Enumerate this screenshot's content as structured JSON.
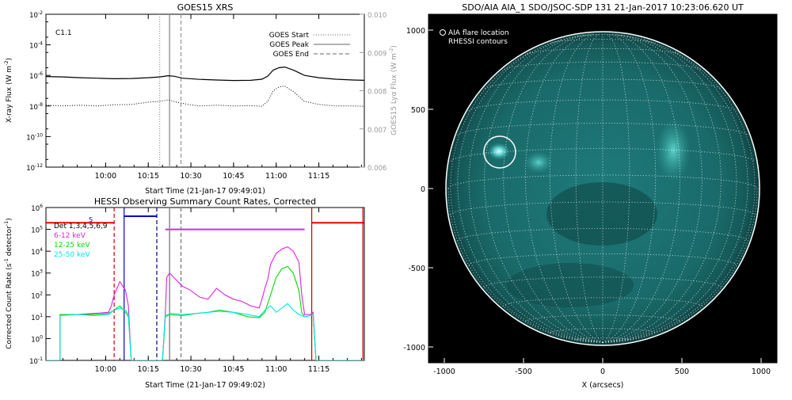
{
  "chart_data": [
    {
      "id": "goes",
      "type": "line",
      "title": "GOES15 XRS",
      "xlabel": "Start Time (21-Jan-17 09:49:01)",
      "ylabel": "X-ray Flux (W m",
      "ylabel_sup": "-2",
      "ylabel_end": ")",
      "ylabel_right": "GOES15 Lyα Flux (W m",
      "ylabel_right_sup": "-2",
      "ylabel_right_end": ")",
      "annotation": "C1.1",
      "x_range_min": [
        579,
        1056
      ],
      "x_ticks": [
        {
          "min": 600,
          "label": "10:00"
        },
        {
          "min": 615,
          "label": "10:15"
        },
        {
          "min": 630,
          "label": "10:30"
        },
        {
          "min": 645,
          "label": "10:45"
        },
        {
          "min": 660,
          "label": "11:00"
        },
        {
          "min": 675,
          "label": "11:15"
        }
      ],
      "x_ticks_visible_range": [
        579,
        691
      ],
      "ylog_range": [
        -12,
        -2
      ],
      "y_ticks": [
        {
          "exp": -2,
          "label": "10",
          "sup": "-2"
        },
        {
          "exp": -4,
          "label": "10",
          "sup": "-4"
        },
        {
          "exp": -6,
          "label": "10",
          "sup": "-6"
        },
        {
          "exp": -8,
          "label": "10",
          "sup": "-8"
        },
        {
          "exp": -10,
          "label": "10",
          "sup": "-10"
        },
        {
          "exp": -12,
          "label": "10",
          "sup": "-12"
        }
      ],
      "y2_range": [
        0.006,
        0.01
      ],
      "y2_ticks": [
        "0.010",
        "0.009",
        "0.008",
        "0.007",
        "0.006"
      ],
      "legend": [
        {
          "label": "GOES Start",
          "style": "dotted"
        },
        {
          "label": "GOES Peak",
          "style": "solid"
        },
        {
          "label": "GOES End",
          "style": "dashed"
        }
      ],
      "markers_min": {
        "start": 619,
        "peak": 622.5,
        "end": 626.5
      },
      "series": [
        {
          "style": "solid",
          "color": "#000000",
          "points": [
            [
              579,
              -6.07
            ],
            [
              585,
              -6.1
            ],
            [
              591,
              -6.15
            ],
            [
              597,
              -6.18
            ],
            [
              603,
              -6.22
            ],
            [
              609,
              -6.2
            ],
            [
              615,
              -6.15
            ],
            [
              619,
              -6.1
            ],
            [
              622,
              -6.02
            ],
            [
              624,
              -6.05
            ],
            [
              627,
              -6.18
            ],
            [
              633,
              -6.26
            ],
            [
              639,
              -6.3
            ],
            [
              645,
              -6.33
            ],
            [
              651,
              -6.32
            ],
            [
              655,
              -6.25
            ],
            [
              657,
              -6.05
            ],
            [
              659,
              -5.65
            ],
            [
              661,
              -5.5
            ],
            [
              663,
              -5.45
            ],
            [
              666,
              -5.65
            ],
            [
              670,
              -6.0
            ],
            [
              675,
              -6.15
            ],
            [
              681,
              -6.25
            ],
            [
              687,
              -6.3
            ],
            [
              691,
              -6.32
            ]
          ]
        },
        {
          "style": "dotted",
          "color": "#000000",
          "points": [
            [
              579,
              -7.95
            ],
            [
              585,
              -8.0
            ],
            [
              591,
              -7.95
            ],
            [
              597,
              -8.0
            ],
            [
              603,
              -7.92
            ],
            [
              609,
              -7.9
            ],
            [
              615,
              -7.75
            ],
            [
              619,
              -7.7
            ],
            [
              622,
              -7.6
            ],
            [
              625,
              -7.75
            ],
            [
              629,
              -7.9
            ],
            [
              633,
              -8.0
            ],
            [
              639,
              -7.95
            ],
            [
              645,
              -8.0
            ],
            [
              651,
              -7.98
            ],
            [
              655,
              -8.02
            ],
            [
              657,
              -7.7
            ],
            [
              659,
              -7.0
            ],
            [
              661,
              -6.75
            ],
            [
              663,
              -6.7
            ],
            [
              666,
              -7.05
            ],
            [
              670,
              -7.7
            ],
            [
              675,
              -7.9
            ],
            [
              681,
              -8.0
            ],
            [
              687,
              -8.0
            ],
            [
              691,
              -8.02
            ]
          ]
        }
      ]
    },
    {
      "id": "hessi",
      "type": "line",
      "title": "HESSI Observing Summary Count Rates, Corrected",
      "xlabel": "Start Time (21-Jan-17 09:49:02)",
      "ylabel": "Corrected Count Rate (s",
      "ylabel_sup": "-1",
      "ylabel_end": " detector",
      "ylabel_sup2": "-1",
      "ylabel_end2": ")",
      "x_ticks": [
        {
          "min": 600,
          "label": "10:00"
        },
        {
          "min": 615,
          "label": "10:15"
        },
        {
          "min": 630,
          "label": "10:30"
        },
        {
          "min": 645,
          "label": "10:45"
        },
        {
          "min": 660,
          "label": "11:00"
        },
        {
          "min": 675,
          "label": "11:15"
        }
      ],
      "ylog_range": [
        -1,
        6
      ],
      "y_ticks": [
        {
          "exp": 6,
          "label": "10",
          "sup": "6"
        },
        {
          "exp": 5,
          "label": "10",
          "sup": "5"
        },
        {
          "exp": 4,
          "label": "10",
          "sup": "4"
        },
        {
          "exp": 3,
          "label": "10",
          "sup": "3"
        },
        {
          "exp": 2,
          "label": "10",
          "sup": "2"
        },
        {
          "exp": 1,
          "label": "10",
          "sup": "1"
        },
        {
          "exp": 0,
          "label": "10",
          "sup": "0"
        },
        {
          "exp": -1,
          "label": "10",
          "sup": "-1"
        }
      ],
      "legend": [
        {
          "label": "Det 1,3,4,5,6,9",
          "color": "#000000"
        },
        {
          "label": "6-12 keV",
          "color": "#e020e0"
        },
        {
          "label": "12-25 keV",
          "color": "#00dd00"
        },
        {
          "label": "25-50 keV",
          "color": "#00e5e5"
        }
      ],
      "s_label": "S",
      "vlines": [
        {
          "min": 603,
          "color": "#cc0000",
          "style": "dashed"
        },
        {
          "min": 606.5,
          "color": "#0000cc",
          "style": "solid"
        },
        {
          "min": 618,
          "color": "#000080",
          "style": "dashed"
        },
        {
          "min": 622.5,
          "color": "#888888",
          "style": "solid"
        },
        {
          "min": 626.5,
          "color": "#888888",
          "style": "dashed"
        },
        {
          "min": 672.5,
          "color": "#cc0000",
          "style": "solid"
        },
        {
          "min": 690.5,
          "color": "#cc0000",
          "style": "solid"
        }
      ],
      "attenuator_bars": [
        {
          "from": 579,
          "to": 603,
          "exp": 5.3,
          "color": "#ee0000"
        },
        {
          "from": 606.5,
          "to": 618,
          "exp": 5.6,
          "color": "#0000cc"
        },
        {
          "from": 621,
          "to": 670,
          "exp": 5.0,
          "color": "#e020e0"
        },
        {
          "from": 672.5,
          "to": 691,
          "exp": 5.3,
          "color": "#ee0000"
        }
      ],
      "series": [
        {
          "name": "6-12 keV",
          "color": "#e020e0",
          "points": [
            [
              579,
              -1
            ],
            [
              584,
              -1
            ],
            [
              584,
              1.1
            ],
            [
              590,
              1.1
            ],
            [
              596,
              1.15
            ],
            [
              601,
              1.2
            ],
            [
              602,
              1.5
            ],
            [
              603,
              2.0
            ],
            [
              604,
              2.3
            ],
            [
              605,
              2.6
            ],
            [
              606,
              2.4
            ],
            [
              607,
              2.2
            ],
            [
              608,
              1.5
            ],
            [
              609,
              -1
            ],
            [
              620,
              -1
            ],
            [
              621,
              1.2
            ],
            [
              621.5,
              2.8
            ],
            [
              622.5,
              3.0
            ],
            [
              624,
              2.8
            ],
            [
              627,
              2.4
            ],
            [
              630,
              2.2
            ],
            [
              633,
              1.9
            ],
            [
              636,
              1.8
            ],
            [
              639,
              2.3
            ],
            [
              642,
              2.0
            ],
            [
              645,
              1.8
            ],
            [
              648,
              1.7
            ],
            [
              651,
              1.5
            ],
            [
              654,
              1.4
            ],
            [
              655,
              1.8
            ],
            [
              656,
              2.3
            ],
            [
              657,
              2.7
            ],
            [
              658,
              3.4
            ],
            [
              660,
              3.9
            ],
            [
              662,
              4.1
            ],
            [
              664,
              4.2
            ],
            [
              666,
              4.0
            ],
            [
              668,
              3.5
            ],
            [
              669,
              2.0
            ],
            [
              670,
              1.1
            ],
            [
              672,
              1.1
            ],
            [
              673,
              1.2
            ],
            [
              674,
              -1
            ],
            [
              691,
              -1
            ]
          ]
        },
        {
          "name": "12-25 keV",
          "color": "#00dd00",
          "points": [
            [
              579,
              -1
            ],
            [
              584,
              -1
            ],
            [
              584,
              1.1
            ],
            [
              590,
              1.1
            ],
            [
              596,
              1.1
            ],
            [
              601,
              1.15
            ],
            [
              603,
              1.3
            ],
            [
              605,
              1.5
            ],
            [
              607,
              1.2
            ],
            [
              608,
              1.0
            ],
            [
              609,
              -1
            ],
            [
              620,
              -1
            ],
            [
              621,
              1.0
            ],
            [
              622.5,
              1.1
            ],
            [
              627,
              1.05
            ],
            [
              632,
              1.15
            ],
            [
              636,
              1.2
            ],
            [
              640,
              1.3
            ],
            [
              645,
              1.2
            ],
            [
              650,
              1.0
            ],
            [
              654,
              0.95
            ],
            [
              656,
              1.2
            ],
            [
              658,
              2.0
            ],
            [
              660,
              2.8
            ],
            [
              662,
              3.2
            ],
            [
              664,
              3.3
            ],
            [
              666,
              3.0
            ],
            [
              668,
              2.2
            ],
            [
              669,
              1.2
            ],
            [
              670,
              1.0
            ],
            [
              672,
              1.05
            ],
            [
              673,
              1.1
            ],
            [
              674,
              -1
            ],
            [
              691,
              -1
            ]
          ]
        },
        {
          "name": "25-50 keV",
          "color": "#00e5e5",
          "points": [
            [
              579,
              -1
            ],
            [
              584,
              -1
            ],
            [
              584,
              1.05
            ],
            [
              590,
              1.1
            ],
            [
              596,
              1.05
            ],
            [
              601,
              1.1
            ],
            [
              603,
              1.3
            ],
            [
              605,
              1.4
            ],
            [
              607,
              1.3
            ],
            [
              608,
              1.1
            ],
            [
              609,
              -1
            ],
            [
              620,
              -1
            ],
            [
              621,
              1.05
            ],
            [
              623,
              1.15
            ],
            [
              627,
              1.1
            ],
            [
              632,
              1.15
            ],
            [
              636,
              1.2
            ],
            [
              640,
              1.25
            ],
            [
              645,
              1.2
            ],
            [
              650,
              1.1
            ],
            [
              654,
              1.0
            ],
            [
              656,
              1.3
            ],
            [
              658,
              1.5
            ],
            [
              660,
              1.2
            ],
            [
              662,
              1.4
            ],
            [
              664,
              1.6
            ],
            [
              666,
              1.3
            ],
            [
              668,
              1.1
            ],
            [
              670,
              1.0
            ],
            [
              672,
              1.05
            ],
            [
              673,
              1.1
            ],
            [
              674,
              -1
            ],
            [
              691,
              -1
            ]
          ]
        }
      ]
    },
    {
      "id": "aia",
      "type": "scatter",
      "title": "SDO/AIA AIA_1 SDO/JSOC-SDP 131 21-Jan-2017 10:23:06.620 UT",
      "xlabel": "X (arcsecs)",
      "x_range": [
        -1100,
        1100
      ],
      "y_range": [
        -1100,
        1100
      ],
      "x_ticks": [
        "-1000",
        "-500",
        "0",
        "500",
        "1000"
      ],
      "y_ticks": [
        "1000",
        "500",
        "0",
        "-500",
        "-1000"
      ],
      "legend": [
        {
          "label": "AIA flare location",
          "symbol": "circle"
        },
        {
          "label": "RHESSI contours",
          "symbol": "none"
        }
      ],
      "solar_radius_arcsec": 975,
      "flare_location": [
        -650,
        230
      ],
      "grid_spacing_deg": 10,
      "colors": {
        "disk": "#1c6f6f",
        "limb": "#0d3a3a",
        "bright": "#a0ffff",
        "background": "#000000"
      }
    }
  ]
}
